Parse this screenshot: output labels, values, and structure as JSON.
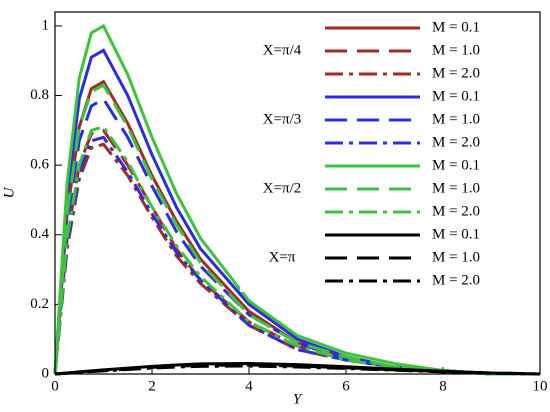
{
  "chart_data": {
    "type": "line",
    "xlabel": "Y",
    "ylabel": "U",
    "xlim": [
      0,
      10
    ],
    "ylim": [
      0,
      1.04
    ],
    "xticks": [
      0,
      2,
      4,
      6,
      8,
      10
    ],
    "yticks": [
      0,
      0.2,
      0.4,
      0.6,
      0.8,
      1
    ],
    "x": [
      0,
      0.25,
      0.5,
      0.75,
      1,
      1.5,
      2,
      2.5,
      3,
      4,
      5,
      6,
      7,
      8,
      9,
      10
    ],
    "series_groups": [
      {
        "label": "X=π/4",
        "color": "#a52a1e",
        "series": [
          {
            "name": "M = 0.1",
            "dash": "solid",
            "values": [
              0,
              0.46,
              0.71,
              0.82,
              0.84,
              0.72,
              0.57,
              0.44,
              0.33,
              0.18,
              0.09,
              0.05,
              0.02,
              0.01,
              0,
              0
            ]
          },
          {
            "name": "M = 1.0",
            "dash": "dash",
            "values": [
              0,
              0.39,
              0.6,
              0.69,
              0.7,
              0.6,
              0.48,
              0.36,
              0.27,
              0.15,
              0.08,
              0.04,
              0.02,
              0.01,
              0,
              0
            ]
          },
          {
            "name": "M = 2.0",
            "dash": "dashdot",
            "values": [
              0,
              0.36,
              0.56,
              0.65,
              0.66,
              0.57,
              0.45,
              0.34,
              0.26,
              0.14,
              0.07,
              0.04,
              0.02,
              0.01,
              0,
              0
            ]
          }
        ]
      },
      {
        "label": "X=π/3",
        "color": "#2b2be6",
        "series": [
          {
            "name": "M = 0.1",
            "dash": "solid",
            "values": [
              0,
              0.51,
              0.79,
              0.91,
              0.93,
              0.8,
              0.63,
              0.48,
              0.36,
              0.2,
              0.1,
              0.05,
              0.02,
              0.01,
              0,
              0
            ]
          },
          {
            "name": "M = 1.0",
            "dash": "dash",
            "values": [
              0,
              0.43,
              0.67,
              0.77,
              0.79,
              0.68,
              0.54,
              0.41,
              0.31,
              0.17,
              0.09,
              0.04,
              0.02,
              0.01,
              0,
              0
            ]
          },
          {
            "name": "M = 2.0",
            "dash": "dashdot",
            "values": [
              0,
              0.37,
              0.58,
              0.67,
              0.68,
              0.58,
              0.46,
              0.35,
              0.27,
              0.14,
              0.07,
              0.04,
              0.02,
              0.01,
              0,
              0
            ]
          }
        ]
      },
      {
        "label": "X=π/2",
        "color": "#3cc43c",
        "series": [
          {
            "name": "M = 0.1",
            "dash": "solid",
            "values": [
              0,
              0.55,
              0.85,
              0.98,
              1.0,
              0.86,
              0.68,
              0.52,
              0.39,
              0.21,
              0.11,
              0.06,
              0.03,
              0.01,
              0,
              0
            ]
          },
          {
            "name": "M = 1.0",
            "dash": "dash",
            "values": [
              0,
              0.46,
              0.71,
              0.81,
              0.83,
              0.71,
              0.56,
              0.43,
              0.32,
              0.17,
              0.09,
              0.05,
              0.02,
              0.01,
              0,
              0
            ]
          },
          {
            "name": "M = 2.0",
            "dash": "dashdot",
            "values": [
              0,
              0.39,
              0.6,
              0.7,
              0.71,
              0.61,
              0.48,
              0.37,
              0.28,
              0.15,
              0.08,
              0.04,
              0.02,
              0.01,
              0,
              0
            ]
          }
        ]
      },
      {
        "label": "X=π",
        "color": "#000000",
        "series": [
          {
            "name": "M = 0.1",
            "dash": "solid",
            "values": [
              0,
              0.003,
              0.006,
              0.009,
              0.012,
              0.017,
              0.022,
              0.026,
              0.029,
              0.03,
              0.027,
              0.021,
              0.014,
              0.008,
              0.003,
              0
            ]
          },
          {
            "name": "M = 1.0",
            "dash": "dash",
            "values": [
              0,
              0.003,
              0.005,
              0.008,
              0.01,
              0.014,
              0.019,
              0.022,
              0.025,
              0.026,
              0.023,
              0.018,
              0.012,
              0.007,
              0.003,
              0
            ]
          },
          {
            "name": "M = 2.0",
            "dash": "dashdot",
            "values": [
              0,
              0.002,
              0.005,
              0.007,
              0.009,
              0.013,
              0.017,
              0.02,
              0.022,
              0.023,
              0.02,
              0.016,
              0.011,
              0.006,
              0.002,
              0
            ]
          }
        ]
      }
    ]
  }
}
